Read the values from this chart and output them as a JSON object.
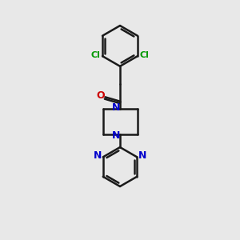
{
  "background_color": "#e8e8e8",
  "bond_color": "#1a1a1a",
  "nitrogen_color": "#0000cc",
  "oxygen_color": "#cc0000",
  "chlorine_color": "#009900",
  "line_width": 1.8,
  "fig_size": [
    3.0,
    3.0
  ],
  "dpi": 100,
  "xlim": [
    0,
    10
  ],
  "ylim": [
    0,
    10
  ]
}
